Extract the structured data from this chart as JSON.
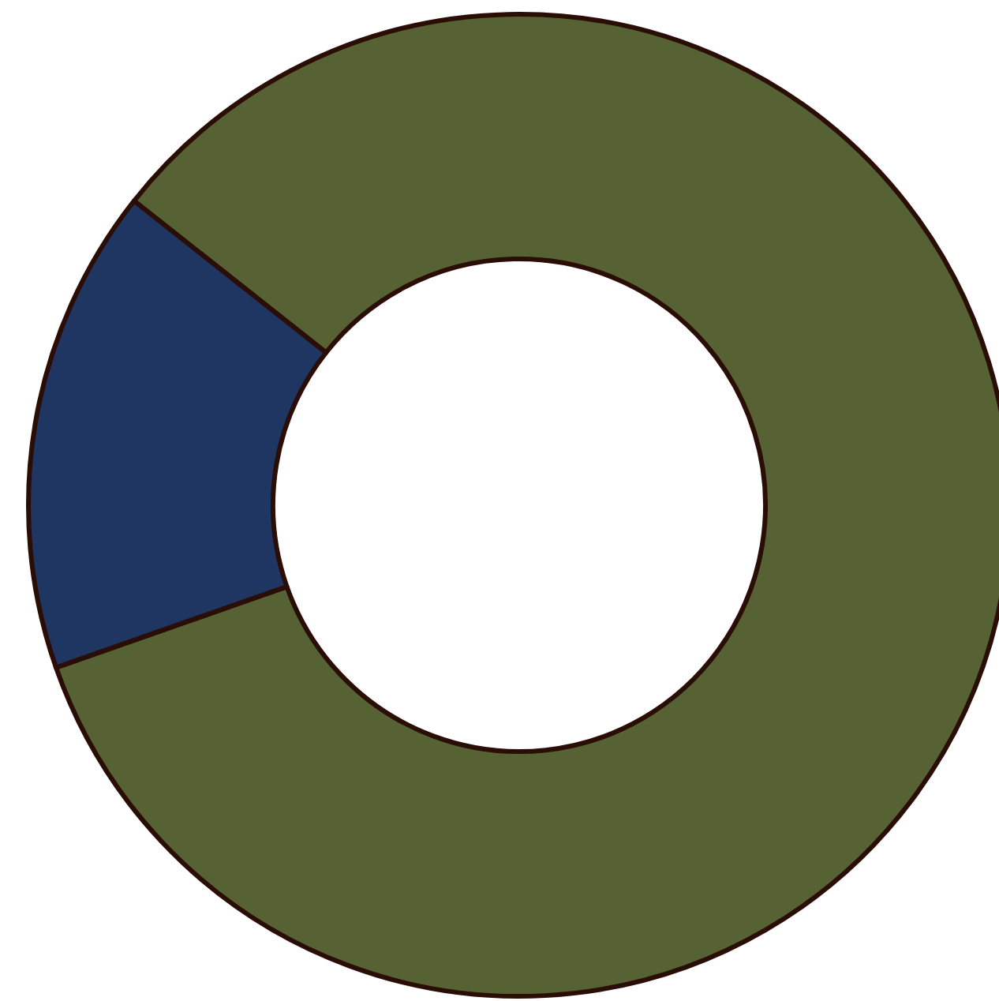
{
  "chart_data": {
    "type": "donut",
    "categories": [
      null,
      null
    ],
    "values": [
      84,
      16
    ],
    "colors": [
      "#566134",
      "#1f3562"
    ]
  }
}
